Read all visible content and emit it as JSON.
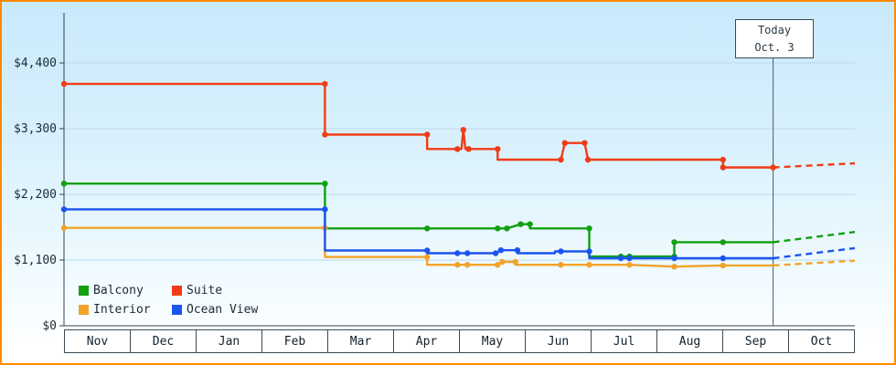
{
  "today_box": {
    "line1": "Today",
    "line2": "Oct. 3"
  },
  "colors": {
    "frame_border": "#ff8a00",
    "grid": "#b8dcee",
    "axis": "#32424d",
    "today_line": "#4a5a66",
    "background_top": "#c9e9fb",
    "background_bottom": "#ffffff"
  },
  "chart_data": {
    "type": "line",
    "title": "",
    "xlabel": "",
    "ylabel": "",
    "currency": "USD",
    "grid": true,
    "legend_position": "bottom-left",
    "x_categories": [
      "Nov",
      "Dec",
      "Jan",
      "Feb",
      "Mar",
      "Apr",
      "May",
      "Jun",
      "Jul",
      "Aug",
      "Sep",
      "Oct"
    ],
    "x_range_months": [
      0,
      12
    ],
    "y_range": [
      0,
      4400
    ],
    "y_tick_labels": [
      "$4,400",
      "$3,300",
      "$2,200",
      "$1,100",
      "$0"
    ],
    "y_grid_values": [
      4400,
      3300,
      2200,
      1100
    ],
    "today_x_month": 10.76,
    "today_label": "Today Oct. 3",
    "note": "points are [month_offset_from_Nov, price_usd, marker_dot]; dashed projection after Today",
    "series": [
      {
        "name": "Balcony",
        "color": "#10a010",
        "points": [
          [
            0,
            2380,
            1
          ],
          [
            3.96,
            2380,
            1
          ],
          [
            3.96,
            1630,
            0
          ],
          [
            5.51,
            1630,
            1
          ],
          [
            6.58,
            1630,
            1
          ],
          [
            6.72,
            1630,
            1
          ],
          [
            6.93,
            1700,
            1
          ],
          [
            7.07,
            1700,
            1
          ],
          [
            7.07,
            1630,
            0
          ],
          [
            7.97,
            1630,
            1
          ],
          [
            7.97,
            1160,
            0
          ],
          [
            8.45,
            1160,
            1
          ],
          [
            8.58,
            1160,
            1
          ],
          [
            9.26,
            1160,
            1
          ],
          [
            9.26,
            1400,
            1
          ],
          [
            10.0,
            1400,
            1
          ],
          [
            10.76,
            1400,
            0
          ]
        ],
        "projection": [
          [
            10.76,
            1400
          ],
          [
            12,
            1570
          ]
        ]
      },
      {
        "name": "Suite",
        "color": "#f03c16",
        "points": [
          [
            0,
            4050,
            1
          ],
          [
            3.96,
            4050,
            1
          ],
          [
            3.96,
            3200,
            1
          ],
          [
            5.51,
            3200,
            1
          ],
          [
            5.51,
            2960,
            0
          ],
          [
            5.97,
            2960,
            1
          ],
          [
            6.03,
            2960,
            0
          ],
          [
            6.06,
            3280,
            1
          ],
          [
            6.09,
            2960,
            0
          ],
          [
            6.14,
            2960,
            1
          ],
          [
            6.58,
            2960,
            1
          ],
          [
            6.58,
            2780,
            0
          ],
          [
            7.54,
            2780,
            1
          ],
          [
            7.6,
            3060,
            1
          ],
          [
            7.9,
            3060,
            1
          ],
          [
            7.95,
            2780,
            1
          ],
          [
            10.0,
            2780,
            1
          ],
          [
            10.0,
            2650,
            1
          ],
          [
            10.76,
            2650,
            1
          ]
        ],
        "projection": [
          [
            10.76,
            2650
          ],
          [
            12,
            2720
          ]
        ]
      },
      {
        "name": "Interior",
        "color": "#f2a32b",
        "points": [
          [
            0,
            1640,
            1
          ],
          [
            3.96,
            1640,
            1
          ],
          [
            3.96,
            1150,
            0
          ],
          [
            5.51,
            1150,
            1
          ],
          [
            5.51,
            1020,
            0
          ],
          [
            5.97,
            1020,
            1
          ],
          [
            6.12,
            1020,
            1
          ],
          [
            6.58,
            1020,
            1
          ],
          [
            6.65,
            1070,
            1
          ],
          [
            6.85,
            1070,
            1
          ],
          [
            6.85,
            1020,
            0
          ],
          [
            7.54,
            1020,
            1
          ],
          [
            7.97,
            1020,
            1
          ],
          [
            8.58,
            1020,
            1
          ],
          [
            9.26,
            990,
            1
          ],
          [
            10.0,
            1010,
            1
          ],
          [
            10.76,
            1010,
            0
          ]
        ],
        "projection": [
          [
            10.76,
            1010
          ],
          [
            12,
            1090
          ]
        ]
      },
      {
        "name": "Ocean View",
        "color": "#1b54f0",
        "points": [
          [
            0,
            1950,
            1
          ],
          [
            3.96,
            1950,
            1
          ],
          [
            3.96,
            1260,
            0
          ],
          [
            5.51,
            1260,
            1
          ],
          [
            5.51,
            1215,
            0
          ],
          [
            5.97,
            1215,
            1
          ],
          [
            6.12,
            1215,
            1
          ],
          [
            6.55,
            1215,
            1
          ],
          [
            6.63,
            1265,
            1
          ],
          [
            6.88,
            1265,
            1
          ],
          [
            6.88,
            1215,
            0
          ],
          [
            7.45,
            1215,
            0
          ],
          [
            7.45,
            1245,
            0
          ],
          [
            7.54,
            1245,
            1
          ],
          [
            7.97,
            1245,
            1
          ],
          [
            7.97,
            1130,
            0
          ],
          [
            8.45,
            1130,
            1
          ],
          [
            8.58,
            1130,
            1
          ],
          [
            9.26,
            1130,
            1
          ],
          [
            10.0,
            1130,
            1
          ],
          [
            10.76,
            1130,
            0
          ]
        ],
        "projection": [
          [
            10.76,
            1130
          ],
          [
            12,
            1300
          ]
        ]
      }
    ]
  }
}
